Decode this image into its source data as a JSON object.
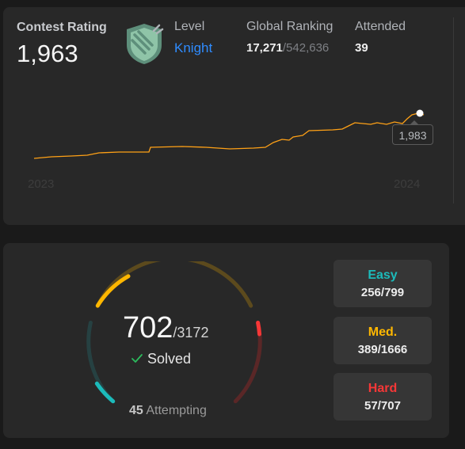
{
  "contest": {
    "rating_label": "Contest Rating",
    "rating_value": "1,963",
    "level_label": "Level",
    "level_value": "Knight",
    "global_ranking_label": "Global Ranking",
    "global_rank": "17,271",
    "global_total": "/542,636",
    "attended_label": "Attended",
    "attended_value": "39",
    "year_start": "2023",
    "year_end": "2024",
    "tooltip_value": "1,983",
    "line_color": "#ffa116",
    "badge_icon": "knight-badge-icon"
  },
  "problems": {
    "solved": "702",
    "total": "/3172",
    "solved_label": "Solved",
    "attempting_count": "45",
    "attempting_label": " Attempting",
    "easy_label": "Easy",
    "easy_value": "256/799",
    "medium_label": "Med.",
    "medium_value": "389/1666",
    "hard_label": "Hard",
    "hard_value": "57/707",
    "colors": {
      "easy": "#1cbaba",
      "medium": "#ffb700",
      "hard": "#f63737"
    }
  }
}
